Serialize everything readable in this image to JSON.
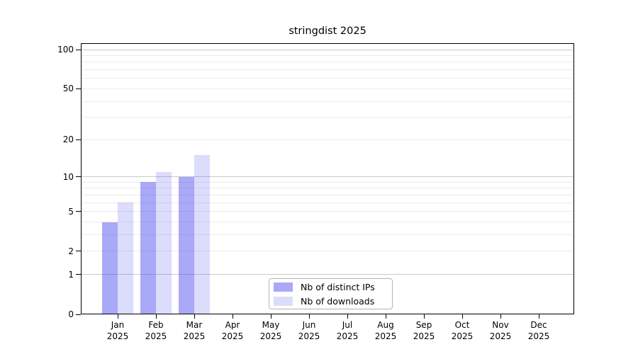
{
  "chart_data": {
    "type": "bar",
    "title": "stringdist 2025",
    "categories": [
      "Jan",
      "Feb",
      "Mar",
      "Apr",
      "May",
      "Jun",
      "Jul",
      "Aug",
      "Sep",
      "Oct",
      "Nov",
      "Dec"
    ],
    "category_year": "2025",
    "series": [
      {
        "name": "Nb of distinct IPs",
        "values": [
          4,
          9,
          10,
          0,
          0,
          0,
          0,
          0,
          0,
          0,
          0,
          0
        ],
        "color": "#3c3cee",
        "alpha": 0.44
      },
      {
        "name": "Nb of downloads",
        "values": [
          6,
          11,
          15,
          0,
          0,
          0,
          0,
          0,
          0,
          0,
          0,
          0
        ],
        "color": "#3c3cee",
        "alpha": 0.18
      }
    ],
    "y_axis": {
      "scale": "log1p",
      "ticks": [
        0,
        1,
        2,
        5,
        10,
        20,
        50,
        100
      ],
      "major_gridlines": [
        1,
        10,
        100
      ],
      "minor_gridlines": [
        2,
        3,
        4,
        5,
        6,
        7,
        8,
        9,
        20,
        30,
        40,
        50,
        60,
        70,
        80,
        90
      ],
      "max_value": 100,
      "ylim": [
        0,
        112
      ]
    },
    "x_axis": {
      "tick_label_format": "month over year"
    },
    "legend": {
      "position": "bottom-center",
      "entries": [
        "Nb of distinct IPs",
        "Nb of downloads"
      ]
    },
    "grid": "horizontal only"
  },
  "colors": {
    "minor_gridline": "#ececec",
    "major_gridline": "#c9c9c9",
    "spine": "#000000",
    "text": "#000000",
    "legend_border": "#b4b4b4"
  }
}
